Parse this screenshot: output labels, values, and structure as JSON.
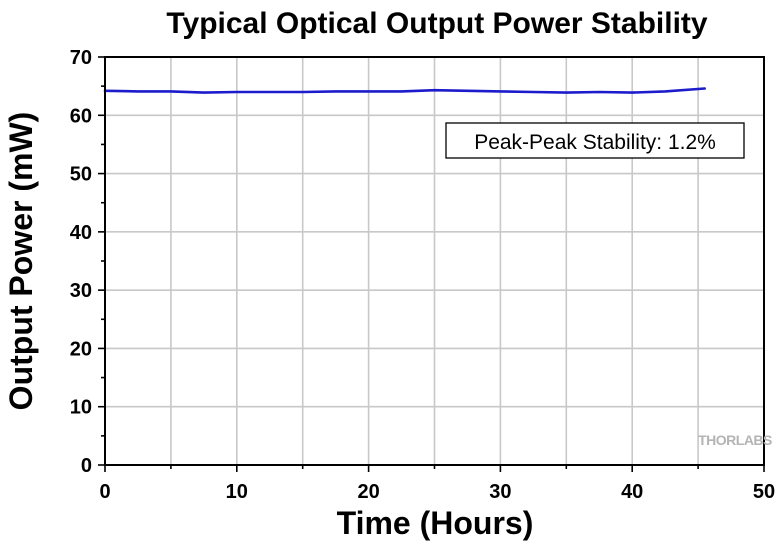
{
  "chart_data": {
    "type": "line",
    "title": "Typical Optical Output Power Stability",
    "xlabel": "Time (Hours)",
    "ylabel": "Output Power (mW)",
    "xlim": [
      0,
      50
    ],
    "ylim": [
      0,
      70
    ],
    "xticks": [
      0,
      10,
      20,
      30,
      40,
      50
    ],
    "yticks": [
      0,
      10,
      20,
      30,
      40,
      50,
      60,
      70
    ],
    "grid": true,
    "series": [
      {
        "color": "#1c1ccc",
        "x": [
          0,
          2.5,
          5,
          7.5,
          10,
          12.5,
          15,
          17.5,
          20,
          22.5,
          25,
          27.5,
          30,
          32.5,
          35,
          37.5,
          40,
          42.5,
          45.5
        ],
        "y": [
          64.2,
          64.1,
          64.1,
          63.9,
          64.0,
          64.0,
          64.0,
          64.1,
          64.1,
          64.1,
          64.3,
          64.2,
          64.1,
          64.0,
          63.9,
          64.0,
          63.9,
          64.1,
          64.6
        ]
      }
    ],
    "annotation": "Peak-Peak Stability: 1.2%",
    "watermark": "THORLABS"
  }
}
